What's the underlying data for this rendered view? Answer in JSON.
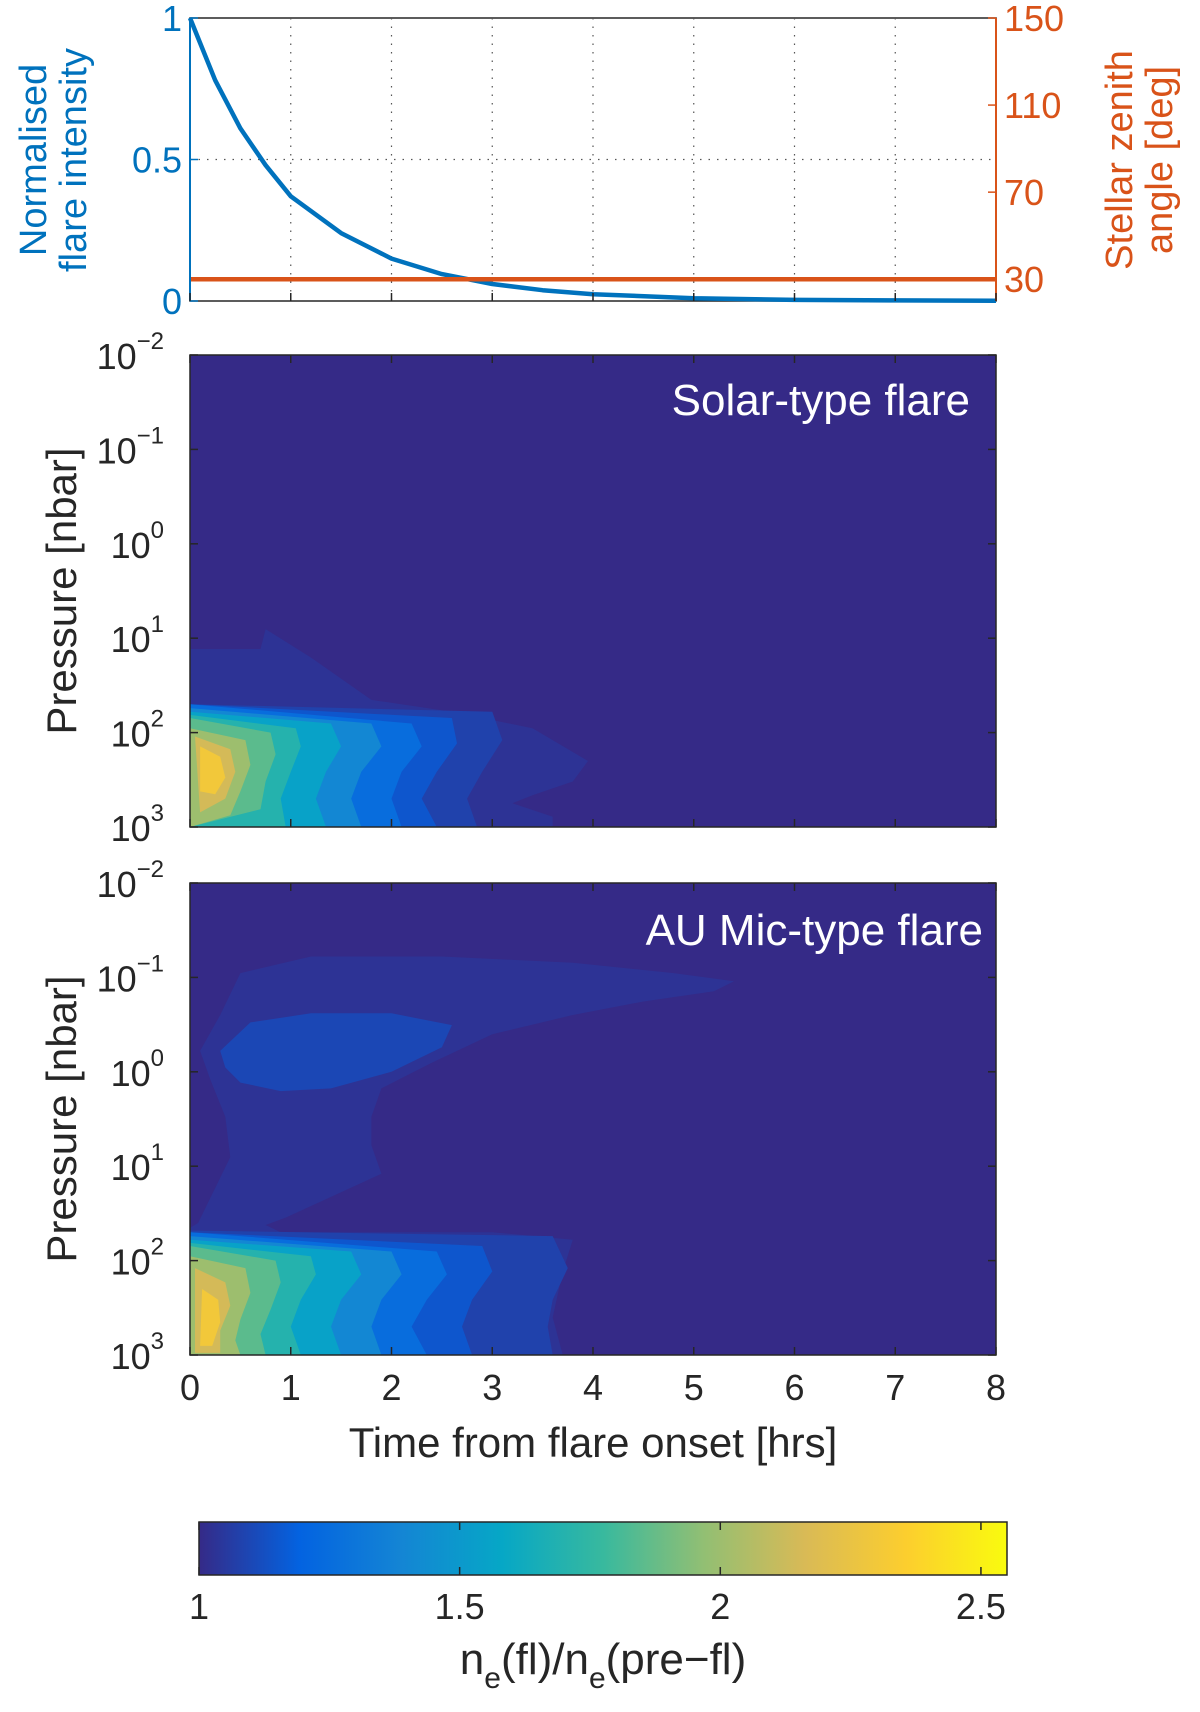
{
  "chart_data": [
    {
      "type": "line",
      "xlim": [
        0,
        8
      ],
      "ylabel_left": [
        "Normalised",
        "flare intensity"
      ],
      "ylabel_right": [
        "Stellar zenith",
        "angle [deg]"
      ],
      "ylim_left": [
        0,
        1
      ],
      "ylim_right": [
        20,
        150
      ],
      "yticks_left": [
        "0",
        "0.5",
        "1"
      ],
      "yticks_right": [
        "30",
        "70",
        "110",
        "150"
      ],
      "grid": "dotted",
      "colors": {
        "left": "#0072BD",
        "right": "#D95319"
      },
      "series": [
        {
          "axis": "left",
          "x": [
            0,
            0.25,
            0.5,
            0.75,
            1,
            1.5,
            2,
            2.5,
            3,
            3.5,
            4,
            5,
            6,
            7,
            8
          ],
          "values": [
            1.0,
            0.78,
            0.61,
            0.48,
            0.37,
            0.24,
            0.15,
            0.095,
            0.06,
            0.038,
            0.024,
            0.01,
            0.004,
            0.002,
            0.001
          ]
        },
        {
          "axis": "right",
          "x": [
            0,
            8
          ],
          "values": [
            30,
            30
          ]
        }
      ]
    },
    {
      "type": "heatmap",
      "annotation": "Solar-type flare",
      "ylabel": "Pressure [nbar]",
      "yscale": "log",
      "ylim": [
        0.01,
        1000
      ],
      "yticks": [
        {
          "base": "10",
          "exp": "−2"
        },
        {
          "base": "10",
          "exp": "−1"
        },
        {
          "base": "10",
          "exp": "0"
        },
        {
          "base": "10",
          "exp": "1"
        },
        {
          "base": "10",
          "exp": "2"
        },
        {
          "base": "10",
          "exp": "3"
        }
      ],
      "xlim": [
        0,
        8
      ],
      "background_value": 1.0,
      "regions": [
        {
          "value": 1.03,
          "p": 13,
          "x": [
            0,
            0.7,
            0.75,
            1.2,
            1.8,
            2.6,
            3.4,
            3.95,
            3.8,
            3.4,
            3.2,
            3.6,
            3.6,
            0
          ],
          "y": [
            13,
            13,
            8,
            16,
            45,
            60,
            90,
            200,
            330,
            460,
            560,
            780,
            1000,
            1000
          ]
        },
        {
          "value": 1.08,
          "x": [
            0,
            3.0,
            3.1,
            2.9,
            2.75,
            2.85,
            0
          ],
          "y": [
            50,
            60,
            120,
            260,
            500,
            1000,
            1000
          ]
        },
        {
          "value": 1.15,
          "x": [
            0,
            2.6,
            2.65,
            2.45,
            2.3,
            2.45,
            0
          ],
          "y": [
            50,
            70,
            130,
            260,
            500,
            1000,
            1000
          ]
        },
        {
          "value": 1.25,
          "x": [
            0,
            2.2,
            2.3,
            2.1,
            2.0,
            2.1,
            0
          ],
          "y": [
            50,
            80,
            140,
            260,
            500,
            1000,
            1000
          ]
        },
        {
          "value": 1.4,
          "x": [
            0,
            1.8,
            1.9,
            1.7,
            1.6,
            1.7,
            0
          ],
          "y": [
            55,
            80,
            140,
            260,
            500,
            1000,
            1000
          ]
        },
        {
          "value": 1.55,
          "x": [
            0,
            1.4,
            1.5,
            1.35,
            1.25,
            1.35,
            0
          ],
          "y": [
            60,
            80,
            140,
            260,
            500,
            1000,
            1000
          ]
        },
        {
          "value": 1.7,
          "x": [
            0,
            1.05,
            1.1,
            1.0,
            0.9,
            0.95,
            0
          ],
          "y": [
            65,
            90,
            140,
            260,
            500,
            1000,
            1000
          ]
        },
        {
          "value": 1.85,
          "x": [
            0,
            0.8,
            0.85,
            0.75,
            0.7,
            0
          ],
          "y": [
            70,
            100,
            170,
            330,
            650,
            1000
          ]
        },
        {
          "value": 2.0,
          "x": [
            0,
            0.55,
            0.6,
            0.5,
            0.4,
            0
          ],
          "y": [
            90,
            120,
            220,
            420,
            750,
            1000
          ]
        },
        {
          "value": 2.15,
          "x": [
            0.05,
            0.4,
            0.45,
            0.35,
            0.1
          ],
          "y": [
            110,
            150,
            260,
            500,
            700
          ]
        },
        {
          "value": 2.3,
          "x": [
            0.1,
            0.3,
            0.35,
            0.25,
            0.1
          ],
          "y": [
            140,
            180,
            300,
            450,
            420
          ]
        }
      ]
    },
    {
      "type": "heatmap",
      "annotation": "AU Mic-type flare",
      "ylabel": "Pressure [nbar]",
      "yscale": "log",
      "ylim": [
        0.01,
        1000
      ],
      "yticks": [
        {
          "base": "10",
          "exp": "−2"
        },
        {
          "base": "10",
          "exp": "−1"
        },
        {
          "base": "10",
          "exp": "0"
        },
        {
          "base": "10",
          "exp": "1"
        },
        {
          "base": "10",
          "exp": "2"
        },
        {
          "base": "10",
          "exp": "3"
        }
      ],
      "xlabel": "Time from flare onset [hrs]",
      "xticks": [
        "0",
        "1",
        "2",
        "3",
        "4",
        "5",
        "6",
        "7",
        "8"
      ],
      "xlim": [
        0,
        8
      ],
      "background_value": 1.0,
      "regions": [
        {
          "value": 1.03,
          "x": [
            0.3,
            0.5,
            1.2,
            2.5,
            3.8,
            4.8,
            5.4,
            5.2,
            4.5,
            3.8,
            3.0,
            2.4,
            1.9,
            1.8,
            1.8,
            1.9,
            0.95,
            0.75,
            0.9,
            3.0,
            3.8,
            3.7,
            3.6,
            3.7,
            0,
            0,
            0.08,
            0.4,
            0.35,
            0.2,
            0.1
          ],
          "y": [
            0.25,
            0.09,
            0.06,
            0.06,
            0.07,
            0.09,
            0.11,
            0.14,
            0.18,
            0.25,
            0.4,
            0.8,
            1.5,
            3,
            6,
            12,
            35,
            42,
            50,
            50,
            60,
            130,
            400,
            1000,
            1000,
            45,
            40,
            8,
            3,
            1.2,
            0.6
          ]
        },
        {
          "value": 1.1,
          "x": [
            0.3,
            0.6,
            1.2,
            2.0,
            2.6,
            2.5,
            2.0,
            1.4,
            0.9,
            0.5,
            0.35
          ],
          "y": [
            0.6,
            0.3,
            0.24,
            0.24,
            0.32,
            0.55,
            1.0,
            1.5,
            1.6,
            1.3,
            0.9
          ]
        },
        {
          "value": 1.08,
          "x": [
            0,
            3.6,
            3.75,
            3.6,
            3.55,
            3.6,
            0
          ],
          "y": [
            48,
            55,
            120,
            260,
            500,
            1000,
            1000
          ]
        },
        {
          "value": 1.15,
          "x": [
            0,
            2.9,
            3.0,
            2.8,
            2.7,
            2.8,
            0
          ],
          "y": [
            50,
            70,
            130,
            260,
            500,
            1000,
            1000
          ]
        },
        {
          "value": 1.25,
          "x": [
            0,
            2.45,
            2.55,
            2.35,
            2.2,
            2.35,
            0
          ],
          "y": [
            50,
            80,
            140,
            260,
            500,
            1000,
            1000
          ]
        },
        {
          "value": 1.4,
          "x": [
            0,
            2.0,
            2.1,
            1.9,
            1.8,
            1.9,
            0
          ],
          "y": [
            55,
            80,
            140,
            260,
            500,
            1000,
            1000
          ]
        },
        {
          "value": 1.55,
          "x": [
            0,
            1.6,
            1.7,
            1.5,
            1.4,
            1.5,
            0
          ],
          "y": [
            60,
            80,
            140,
            260,
            500,
            1000,
            1000
          ]
        },
        {
          "value": 1.7,
          "x": [
            0,
            1.2,
            1.25,
            1.1,
            1.0,
            1.1,
            0
          ],
          "y": [
            65,
            90,
            140,
            260,
            500,
            1000,
            1000
          ]
        },
        {
          "value": 1.85,
          "x": [
            0,
            0.85,
            0.9,
            0.8,
            0.7,
            0.75,
            0
          ],
          "y": [
            70,
            100,
            170,
            330,
            600,
            1000,
            1000
          ]
        },
        {
          "value": 2.0,
          "x": [
            0,
            0.55,
            0.6,
            0.5,
            0.45,
            0.5,
            0
          ],
          "y": [
            90,
            120,
            220,
            420,
            700,
            1000,
            1000
          ]
        },
        {
          "value": 2.15,
          "x": [
            0.05,
            0.35,
            0.4,
            0.3,
            0.3,
            0.05
          ],
          "y": [
            120,
            170,
            300,
            550,
            950,
            950
          ]
        },
        {
          "value": 2.3,
          "x": [
            0.12,
            0.28,
            0.3,
            0.22,
            0.1
          ],
          "y": [
            200,
            260,
            450,
            800,
            800
          ]
        }
      ]
    },
    {
      "type": "colorbar",
      "range": [
        1,
        2.55
      ],
      "ticks": [
        1,
        1.5,
        2,
        2.5
      ],
      "tick_labels": [
        "1",
        "1.5",
        "2",
        "2.5"
      ],
      "label": {
        "parts": [
          "n",
          "e",
          "(fl)/n",
          "e",
          "(pre−fl)"
        ]
      },
      "colormap": [
        "#352A87",
        "#0363E1",
        "#1485D4",
        "#06A7C6",
        "#38B99E",
        "#92BF73",
        "#D9BA56",
        "#FCCE2E",
        "#F9FB0E"
      ]
    }
  ]
}
